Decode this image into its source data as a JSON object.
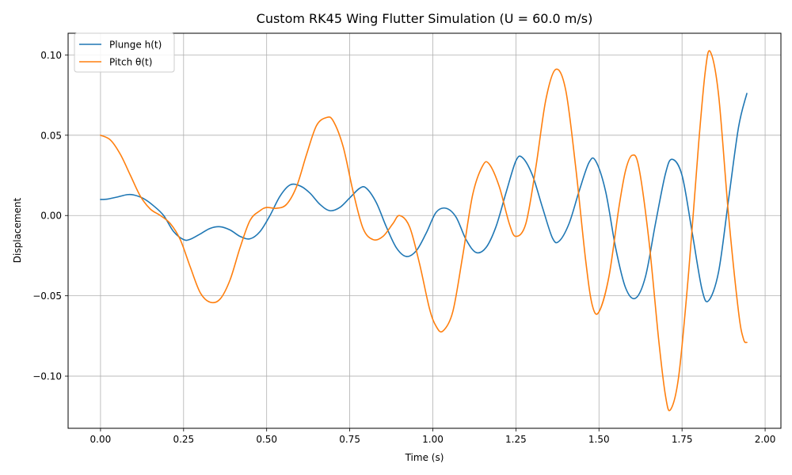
{
  "chart_data": {
    "type": "line",
    "title": "Custom RK45 Wing Flutter Simulation (U = 60.0 m/s)",
    "xlabel": "Time (s)",
    "ylabel": "Displacement",
    "xlim": [
      -0.0975,
      2.0475
    ],
    "ylim": [
      -0.1325,
      0.1135
    ],
    "xticks": [
      0.0,
      0.25,
      0.5,
      0.75,
      1.0,
      1.25,
      1.5,
      1.75,
      2.0
    ],
    "xtick_labels": [
      "0.00",
      "0.25",
      "0.50",
      "0.75",
      "1.00",
      "1.25",
      "1.50",
      "1.75",
      "2.00"
    ],
    "yticks": [
      -0.1,
      -0.05,
      0.0,
      0.05,
      0.1
    ],
    "ytick_labels": [
      "−0.10",
      "−0.05",
      "0.00",
      "0.05",
      "0.10"
    ],
    "grid": true,
    "legend_position": "upper-left",
    "series": [
      {
        "name": "Plunge h(t)",
        "color": "#1f77b4",
        "points": [
          [
            0.0,
            0.01
          ],
          [
            0.02,
            0.0102
          ],
          [
            0.05,
            0.0115
          ],
          [
            0.08,
            0.013
          ],
          [
            0.1,
            0.0128
          ],
          [
            0.13,
            0.0105
          ],
          [
            0.16,
            0.006
          ],
          [
            0.19,
            0.0
          ],
          [
            0.22,
            -0.01
          ],
          [
            0.25,
            -0.015
          ],
          [
            0.27,
            -0.0148
          ],
          [
            0.3,
            -0.0115
          ],
          [
            0.33,
            -0.008
          ],
          [
            0.36,
            -0.007
          ],
          [
            0.39,
            -0.009
          ],
          [
            0.42,
            -0.013
          ],
          [
            0.45,
            -0.0145
          ],
          [
            0.48,
            -0.01
          ],
          [
            0.51,
            0.0
          ],
          [
            0.54,
            0.012
          ],
          [
            0.57,
            0.019
          ],
          [
            0.6,
            0.0185
          ],
          [
            0.63,
            0.014
          ],
          [
            0.66,
            0.007
          ],
          [
            0.69,
            0.003
          ],
          [
            0.72,
            0.005
          ],
          [
            0.75,
            0.011
          ],
          [
            0.78,
            0.017
          ],
          [
            0.8,
            0.017
          ],
          [
            0.83,
            0.008
          ],
          [
            0.86,
            -0.007
          ],
          [
            0.89,
            -0.02
          ],
          [
            0.92,
            -0.0255
          ],
          [
            0.95,
            -0.022
          ],
          [
            0.98,
            -0.011
          ],
          [
            1.01,
            0.002
          ],
          [
            1.04,
            0.0045
          ],
          [
            1.07,
            -0.001
          ],
          [
            1.1,
            -0.015
          ],
          [
            1.13,
            -0.023
          ],
          [
            1.16,
            -0.02
          ],
          [
            1.19,
            -0.007
          ],
          [
            1.22,
            0.014
          ],
          [
            1.25,
            0.034
          ],
          [
            1.27,
            0.036
          ],
          [
            1.3,
            0.025
          ],
          [
            1.33,
            0.005
          ],
          [
            1.36,
            -0.014
          ],
          [
            1.38,
            -0.016
          ],
          [
            1.41,
            -0.005
          ],
          [
            1.44,
            0.015
          ],
          [
            1.47,
            0.033
          ],
          [
            1.49,
            0.034
          ],
          [
            1.52,
            0.015
          ],
          [
            1.55,
            -0.02
          ],
          [
            1.58,
            -0.045
          ],
          [
            1.61,
            -0.0515
          ],
          [
            1.64,
            -0.038
          ],
          [
            1.67,
            -0.005
          ],
          [
            1.7,
            0.026
          ],
          [
            1.72,
            0.035
          ],
          [
            1.75,
            0.025
          ],
          [
            1.78,
            -0.01
          ],
          [
            1.81,
            -0.046
          ],
          [
            1.83,
            -0.053
          ],
          [
            1.86,
            -0.035
          ],
          [
            1.89,
            0.01
          ],
          [
            1.92,
            0.055
          ],
          [
            1.945,
            0.076
          ]
        ]
      },
      {
        "name": "Pitch θ(t)",
        "color": "#ff7f0e",
        "points": [
          [
            0.0,
            0.05
          ],
          [
            0.03,
            0.047
          ],
          [
            0.06,
            0.038
          ],
          [
            0.09,
            0.025
          ],
          [
            0.12,
            0.012
          ],
          [
            0.15,
            0.004
          ],
          [
            0.18,
            0.0
          ],
          [
            0.21,
            -0.005
          ],
          [
            0.24,
            -0.015
          ],
          [
            0.27,
            -0.032
          ],
          [
            0.3,
            -0.048
          ],
          [
            0.33,
            -0.054
          ],
          [
            0.36,
            -0.052
          ],
          [
            0.39,
            -0.04
          ],
          [
            0.42,
            -0.02
          ],
          [
            0.45,
            -0.003
          ],
          [
            0.48,
            0.003
          ],
          [
            0.5,
            0.005
          ],
          [
            0.53,
            0.0045
          ],
          [
            0.56,
            0.007
          ],
          [
            0.59,
            0.018
          ],
          [
            0.62,
            0.038
          ],
          [
            0.65,
            0.056
          ],
          [
            0.68,
            0.061
          ],
          [
            0.7,
            0.059
          ],
          [
            0.73,
            0.043
          ],
          [
            0.76,
            0.015
          ],
          [
            0.79,
            -0.008
          ],
          [
            0.82,
            -0.015
          ],
          [
            0.85,
            -0.013
          ],
          [
            0.88,
            -0.005
          ],
          [
            0.9,
            0.0
          ],
          [
            0.93,
            -0.007
          ],
          [
            0.96,
            -0.03
          ],
          [
            0.99,
            -0.058
          ],
          [
            1.01,
            -0.069
          ],
          [
            1.03,
            -0.072
          ],
          [
            1.06,
            -0.06
          ],
          [
            1.09,
            -0.025
          ],
          [
            1.12,
            0.013
          ],
          [
            1.15,
            0.031
          ],
          [
            1.17,
            0.032
          ],
          [
            1.2,
            0.018
          ],
          [
            1.23,
            -0.005
          ],
          [
            1.25,
            -0.013
          ],
          [
            1.28,
            -0.005
          ],
          [
            1.31,
            0.03
          ],
          [
            1.34,
            0.072
          ],
          [
            1.37,
            0.091
          ],
          [
            1.4,
            0.078
          ],
          [
            1.43,
            0.03
          ],
          [
            1.46,
            -0.028
          ],
          [
            1.48,
            -0.056
          ],
          [
            1.5,
            -0.06
          ],
          [
            1.53,
            -0.038
          ],
          [
            1.56,
            0.005
          ],
          [
            1.58,
            0.028
          ],
          [
            1.6,
            0.0375
          ],
          [
            1.62,
            0.03
          ],
          [
            1.65,
            -0.015
          ],
          [
            1.68,
            -0.078
          ],
          [
            1.7,
            -0.112
          ],
          [
            1.715,
            -0.121
          ],
          [
            1.74,
            -0.1
          ],
          [
            1.77,
            -0.035
          ],
          [
            1.8,
            0.045
          ],
          [
            1.82,
            0.09
          ],
          [
            1.835,
            0.102
          ],
          [
            1.86,
            0.075
          ],
          [
            1.89,
            0.0
          ],
          [
            1.92,
            -0.06
          ],
          [
            1.935,
            -0.077
          ],
          [
            1.945,
            -0.079
          ]
        ]
      }
    ]
  }
}
